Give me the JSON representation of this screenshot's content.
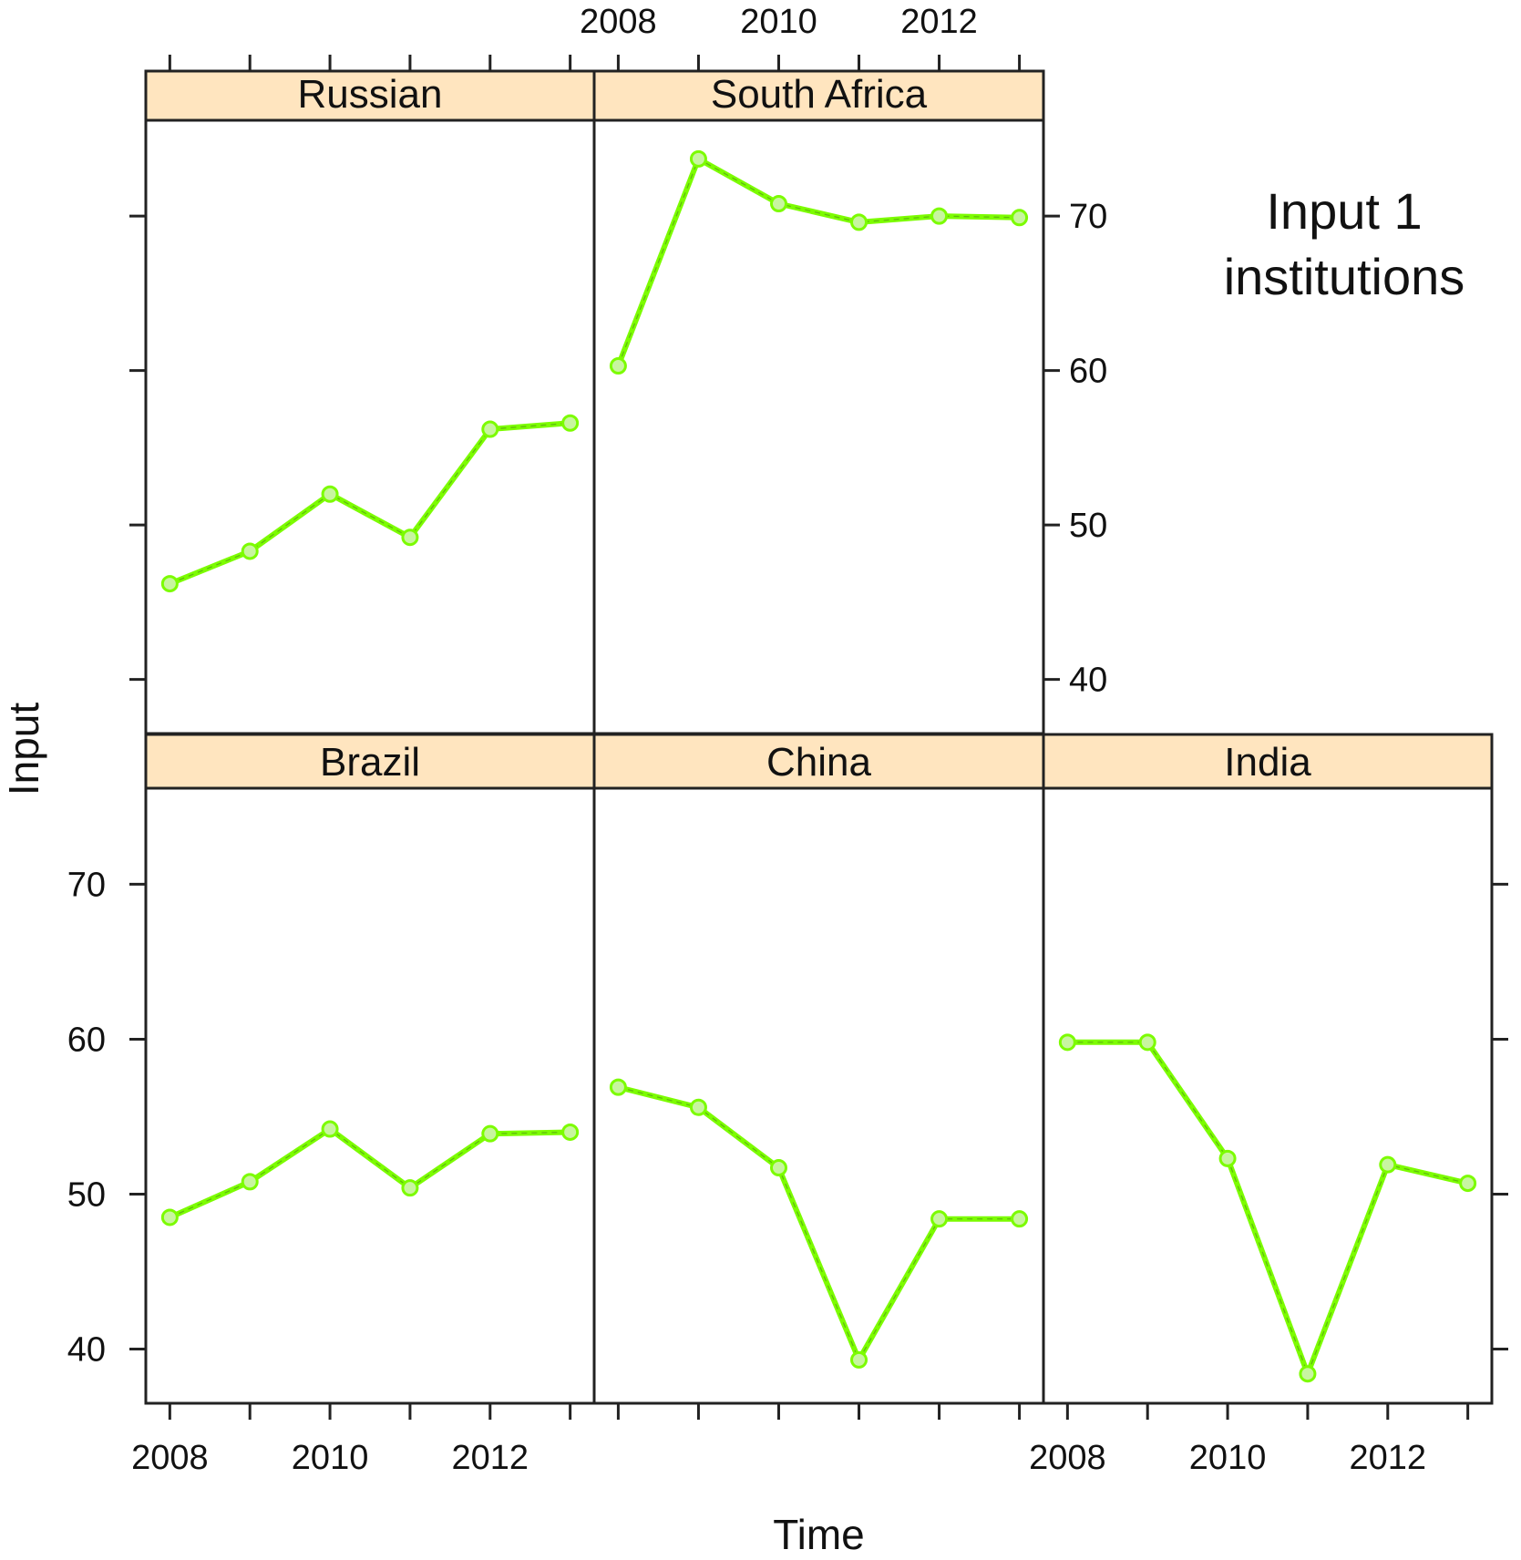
{
  "chart_data": {
    "type": "line",
    "layout": "lattice",
    "annotation": [
      "Input 1",
      "institutions"
    ],
    "xlabel": "Time",
    "ylabel": "Input",
    "x": [
      2008,
      2009,
      2010,
      2011,
      2012,
      2013
    ],
    "x_ticks": [
      2008,
      2010,
      2012
    ],
    "y_ticks": [
      40,
      50,
      60,
      70
    ],
    "xlim": [
      2007.7,
      2013.3
    ],
    "ylim": [
      36.5,
      76.2
    ],
    "grid": false,
    "colors": {
      "line": "#7CFC00",
      "marker": "#7CFC00",
      "strip": "#FFE5BF",
      "frame": "#222222"
    },
    "panels": [
      {
        "name": "Russian",
        "values": [
          46.2,
          48.3,
          52.0,
          49.2,
          56.2,
          56.6
        ]
      },
      {
        "name": "South Africa",
        "values": [
          60.3,
          73.7,
          70.8,
          69.6,
          70.0,
          69.9
        ]
      },
      {
        "name": "Brazil",
        "values": [
          48.5,
          50.8,
          54.2,
          50.4,
          53.9,
          54.0
        ]
      },
      {
        "name": "China",
        "values": [
          56.9,
          55.6,
          51.7,
          39.3,
          48.4,
          48.4
        ]
      },
      {
        "name": "India",
        "values": [
          59.8,
          59.8,
          52.3,
          38.4,
          51.9,
          50.7
        ]
      }
    ]
  }
}
